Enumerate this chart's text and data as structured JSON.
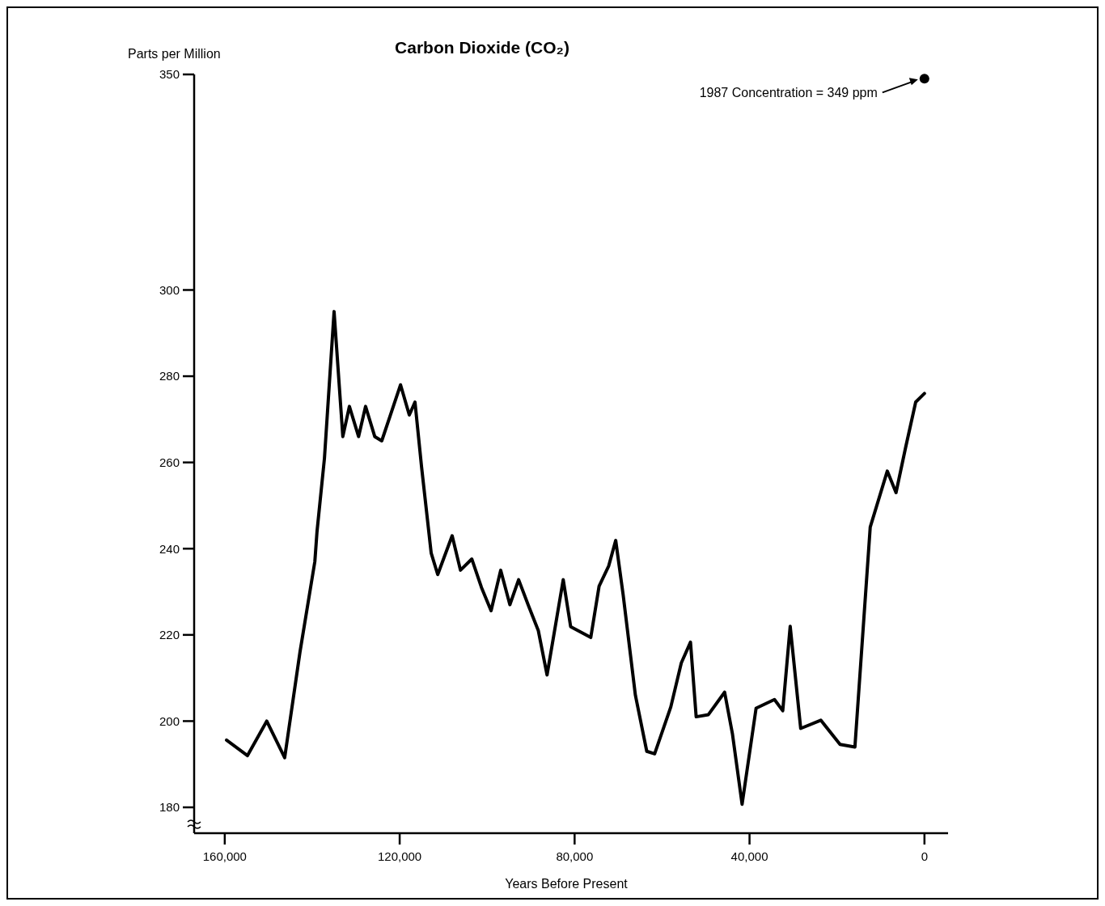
{
  "chart_data": {
    "type": "line",
    "title": "Carbon Dioxide (CO₂)",
    "xlabel": "Years Before Present",
    "ylabel": "Parts per Million",
    "xlim": [
      167000,
      -5400
    ],
    "ylim": [
      174,
      350
    ],
    "xticks": [
      {
        "value": 160000,
        "label": "160,000"
      },
      {
        "value": 120000,
        "label": "120,000"
      },
      {
        "value": 80000,
        "label": "80,000"
      },
      {
        "value": 40000,
        "label": "40,000"
      },
      0
    ],
    "yticks": [
      180,
      200,
      220,
      240,
      260,
      280,
      300,
      350
    ],
    "grid": false,
    "marker": "none",
    "line_style": "solid",
    "annotations": [
      "1987 Concentration = 349 ppm"
    ],
    "series": [
      {
        "color": "#000000",
        "x": [
          159600,
          154800,
          150400,
          146300,
          142800,
          139400,
          138900,
          137200,
          135000,
          133000,
          131500,
          129400,
          127800,
          125700,
          124100,
          119800,
          117800,
          116500,
          115000,
          112800,
          111300,
          108000,
          106100,
          103500,
          101300,
          99100,
          96900,
          94800,
          92800,
          90600,
          88300,
          86300,
          82600,
          80900,
          76300,
          74400,
          72200,
          70600,
          68900,
          66100,
          63500,
          61700,
          58000,
          55600,
          53500,
          52200,
          49400,
          45700,
          43900,
          41700,
          38500,
          34300,
          32400,
          30700,
          28300,
          23700,
          19300,
          15900,
          12400,
          8500,
          6500,
          4300,
          2000,
          0
        ],
        "values": [
          195.6,
          192,
          200,
          191.5,
          216,
          237,
          244,
          261,
          295,
          266,
          273,
          266,
          273,
          266,
          265,
          278,
          271,
          274,
          259,
          239,
          234,
          243,
          235,
          237.6,
          231,
          225.6,
          235,
          227,
          232.8,
          226.9,
          221,
          210.7,
          232.8,
          221.9,
          219.4,
          231.3,
          236,
          241.9,
          229.3,
          206,
          193,
          192.4,
          203.3,
          213.5,
          218.3,
          201,
          201.5,
          206.7,
          197,
          180.7,
          203,
          205,
          202.4,
          222,
          198.3,
          200.2,
          194.6,
          194,
          245,
          258,
          253,
          263.5,
          274,
          276
        ]
      },
      {
        "type": "scatter",
        "color": "#000000",
        "marker": "circle",
        "x": [
          0
        ],
        "values": [
          349
        ]
      }
    ]
  }
}
